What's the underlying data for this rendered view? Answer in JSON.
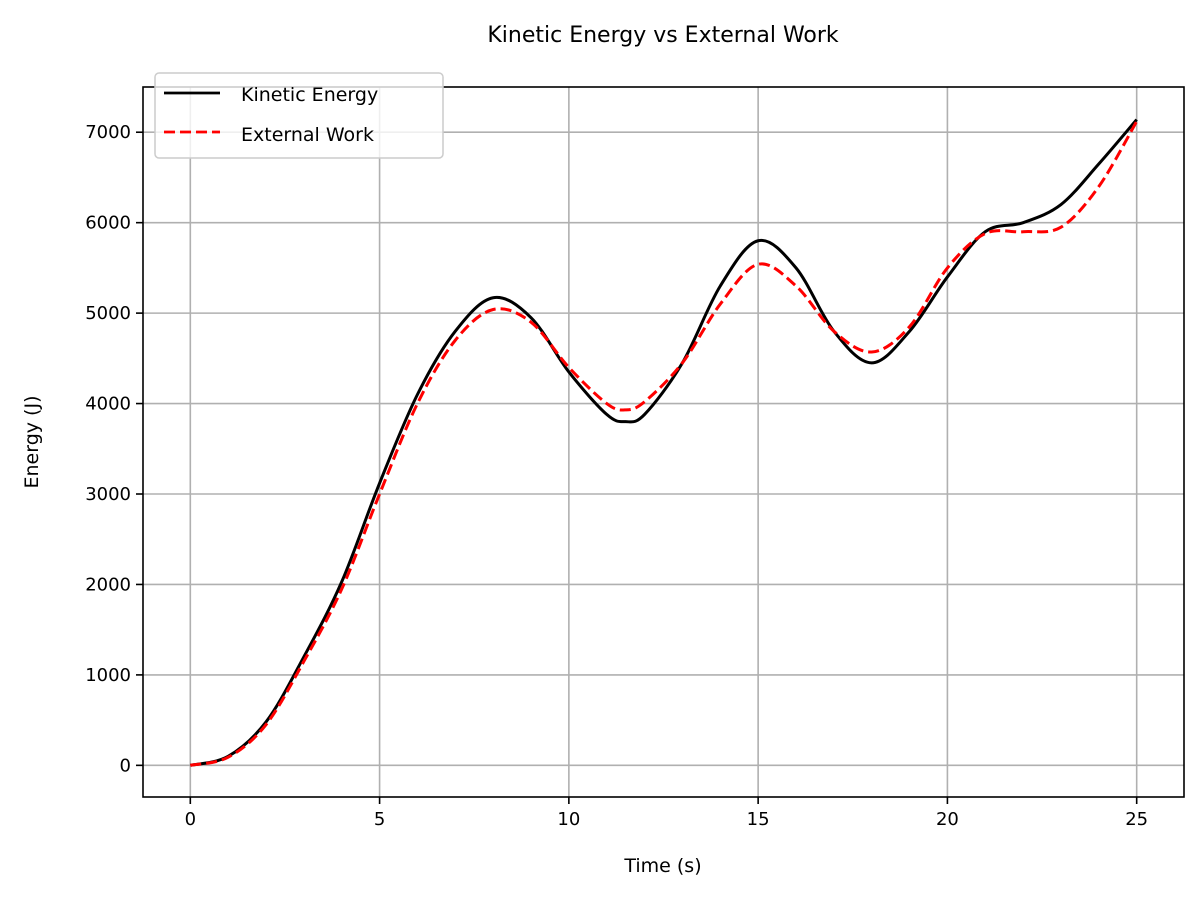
{
  "chart_data": {
    "type": "line",
    "title": "Kinetic Energy vs External Work",
    "xlabel": "Time (s)",
    "ylabel": "Energy (J)",
    "xlim": [
      -1.25,
      26.25
    ],
    "ylim": [
      -350,
      7500
    ],
    "xticks": [
      0,
      5,
      10,
      15,
      20,
      25
    ],
    "yticks": [
      0,
      1000,
      2000,
      3000,
      4000,
      5000,
      6000,
      7000
    ],
    "grid": true,
    "legend_position": "upper-left",
    "x": [
      0,
      1,
      2,
      3,
      4,
      5,
      6,
      7,
      8,
      9,
      10,
      11,
      11.5,
      12,
      13,
      14,
      15,
      16,
      17,
      18,
      19,
      20,
      21,
      22,
      23,
      24,
      25
    ],
    "series": [
      {
        "name": "Kinetic Energy",
        "color": "#000000",
        "style": "solid",
        "values": [
          0,
          100,
          480,
          1200,
          2030,
          3120,
          4100,
          4800,
          5170,
          4950,
          4350,
          3880,
          3800,
          3880,
          4450,
          5300,
          5800,
          5500,
          4800,
          4450,
          4800,
          5400,
          5900,
          6000,
          6200,
          6650,
          7140
        ]
      },
      {
        "name": "External Work",
        "color": "#ff0000",
        "style": "dashed",
        "values": [
          0,
          90,
          450,
          1150,
          1950,
          3000,
          4000,
          4700,
          5040,
          4900,
          4400,
          4000,
          3930,
          4020,
          4450,
          5100,
          5540,
          5300,
          4800,
          4570,
          4850,
          5500,
          5880,
          5900,
          5950,
          6400,
          7120
        ]
      }
    ]
  }
}
